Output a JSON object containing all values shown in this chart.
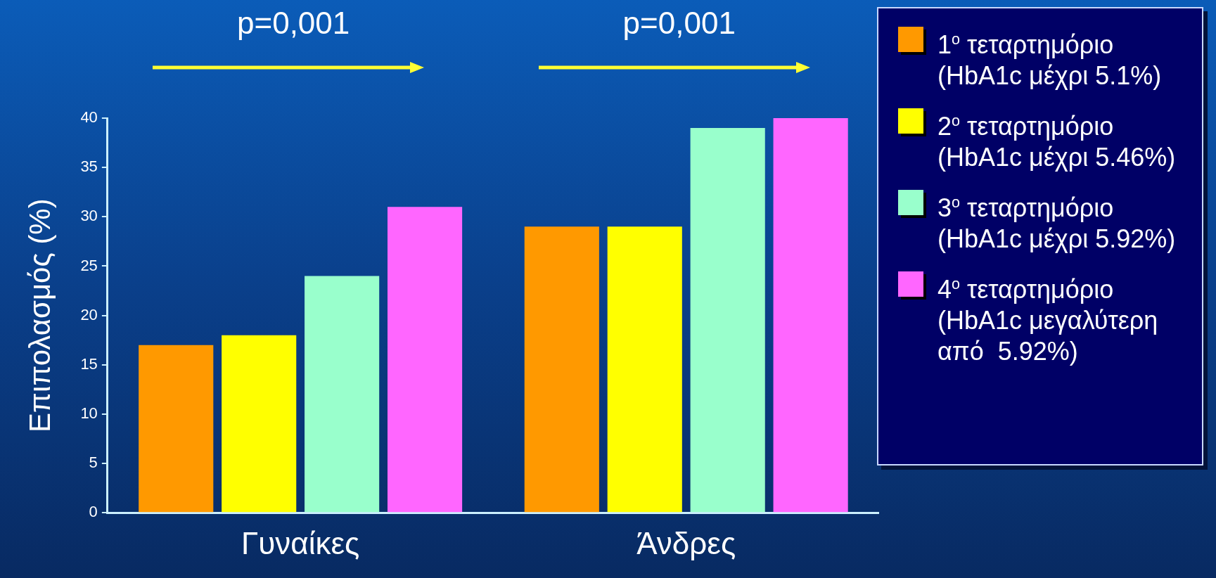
{
  "chart_data": {
    "type": "bar",
    "ylabel": "Επιπολασμός (%)",
    "categories": [
      "Γυναίκες",
      "Άνδρες"
    ],
    "series": [
      {
        "name": "1$^{ο}$ τεταρτημόριο (HbA1c μέχρι 5.1%)",
        "color": "#ff9900",
        "values": [
          17,
          29
        ]
      },
      {
        "name": "2$^{ο}$ τεταρτημόριο (HbA1c μέχρι 5.46%)",
        "color": "#ffff00",
        "values": [
          18,
          29
        ]
      },
      {
        "name": "3$^{ο}$ τεταρτημόριο (HbA1c μέχρι 5.92%)",
        "color": "#99ffcc",
        "values": [
          24,
          39
        ]
      },
      {
        "name": "4$^{ο}$ τεταρτημόριο (HbA1c μεγαλύτερη από  5.92%)",
        "color": "#ff66ff",
        "values": [
          31,
          40
        ]
      }
    ],
    "ylim": [
      0,
      40
    ],
    "yticks": [
      0,
      5,
      10,
      15,
      20,
      25,
      30,
      35,
      40
    ],
    "grid": false,
    "legend": "right",
    "annotations": [
      "p=0,001",
      "p=0,001"
    ]
  }
}
